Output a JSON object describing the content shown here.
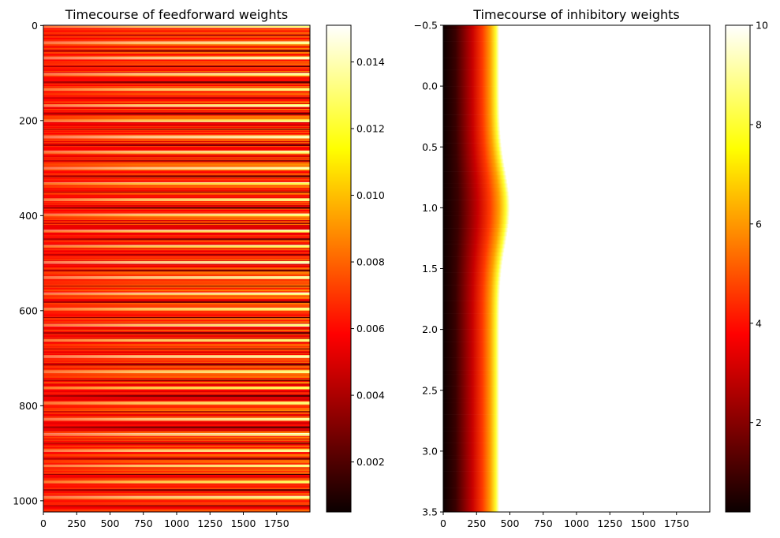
{
  "chart_data": [
    {
      "type": "heatmap",
      "title": "Timecourse of feedforward weights",
      "colormap": "hot",
      "x_range": [
        0,
        2000
      ],
      "y_range": [
        -0.5,
        1023.5
      ],
      "x_ticks": [
        0,
        250,
        500,
        750,
        1000,
        1250,
        1500,
        1750
      ],
      "x_tick_labels": [
        "0",
        "250",
        "500",
        "750",
        "1000",
        "1250",
        "1500",
        "1750"
      ],
      "y_ticks": [
        0,
        200,
        400,
        600,
        800,
        1000
      ],
      "y_tick_labels": [
        "0",
        "200",
        "400",
        "600",
        "800",
        "1000"
      ],
      "colorbar": {
        "vmin": 0.0005,
        "vmax": 0.0151,
        "ticks": [
          0.002,
          0.004,
          0.006,
          0.008,
          0.01,
          0.012,
          0.014
        ],
        "tick_labels": [
          "0.002",
          "0.004",
          "0.006",
          "0.008",
          "0.010",
          "0.012",
          "0.014"
        ]
      },
      "rows": 1024,
      "columns": 2000,
      "description_of_values": "Horizontal stripes per row; bright stripes (~0.012–0.015) and dark stripes (~0.001–0.003) alternate roughly every 33 rows, with the stripe contrast growing from left (~0.006 uniform) to right."
    },
    {
      "type": "heatmap",
      "title": "Timecourse of inhibitory weights",
      "colormap": "hot",
      "x_range": [
        0,
        2000
      ],
      "y_range": [
        3.5,
        -0.5
      ],
      "x_ticks": [
        0,
        250,
        500,
        750,
        1000,
        1250,
        1500,
        1750
      ],
      "x_tick_labels": [
        "0",
        "250",
        "500",
        "750",
        "1000",
        "1250",
        "1500",
        "1750"
      ],
      "y_ticks": [
        -0.5,
        0.0,
        0.5,
        1.0,
        1.5,
        2.0,
        2.5,
        3.0,
        3.5
      ],
      "y_tick_labels": [
        "−0.5",
        "0.0",
        "0.5",
        "1.0",
        "1.5",
        "2.0",
        "2.5",
        "3.0",
        "3.5"
      ],
      "colorbar": {
        "vmin": 0.2,
        "vmax": 10,
        "ticks": [
          2,
          4,
          6,
          8,
          10
        ],
        "tick_labels": [
          "2",
          "4",
          "6",
          "8",
          "10"
        ]
      },
      "rows": 4,
      "columns": 2000,
      "row_profiles": [
        {
          "row": 0,
          "value_at_0": 0.2,
          "reaches_max_at_x": 420
        },
        {
          "row": 1,
          "value_at_0": 0.2,
          "reaches_max_at_x": 500
        },
        {
          "row": 2,
          "value_at_0": 0.2,
          "reaches_max_at_x": 420
        },
        {
          "row": 3,
          "value_at_0": 0.2,
          "reaches_max_at_x": 420
        }
      ]
    }
  ]
}
